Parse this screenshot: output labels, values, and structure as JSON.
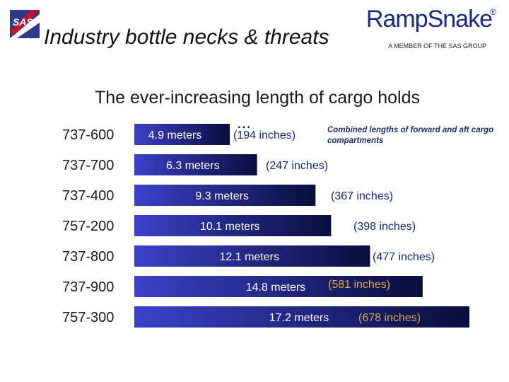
{
  "header": {
    "title": "Industry bottle necks & threats",
    "brand": "RampSnake",
    "brand_mark": "®",
    "brand_tagline": "A MEMBER OF THE SAS GROUP",
    "left_logo": "SAS"
  },
  "chart_data": {
    "type": "bar",
    "orientation": "horizontal",
    "title": "",
    "subtitle": "The ever-increasing length of cargo holds",
    "annotation": "Combined lengths of forward and aft cargo compartments",
    "ellipsis": "...",
    "categories": [
      "737-600",
      "737-700",
      "737-400",
      "757-200",
      "737-800",
      "737-900",
      "757-300"
    ],
    "values": [
      4.9,
      6.3,
      9.3,
      10.1,
      12.1,
      14.8,
      17.2
    ],
    "value_labels": [
      "4.9 meters",
      "6.3 meters",
      "9.3 meters",
      "10.1 meters",
      "12.1 meters",
      "14.8 meters",
      "17.2 meters"
    ],
    "secondary_labels": [
      "(194 inches)",
      "(247 inches)",
      "(367 inches)",
      "(398 inches)",
      "(477 inches)",
      "(581 inches)",
      "(678 inches)"
    ],
    "xlabel": "",
    "ylabel": "",
    "xlim": [
      0,
      17.2
    ],
    "grid": false,
    "colors": {
      "bar_light": "#3b42c8",
      "bar_dark": "#0a0d3c",
      "inch_label": "#1a237e",
      "inch_label_dark_bg": "#d8a84a"
    }
  }
}
